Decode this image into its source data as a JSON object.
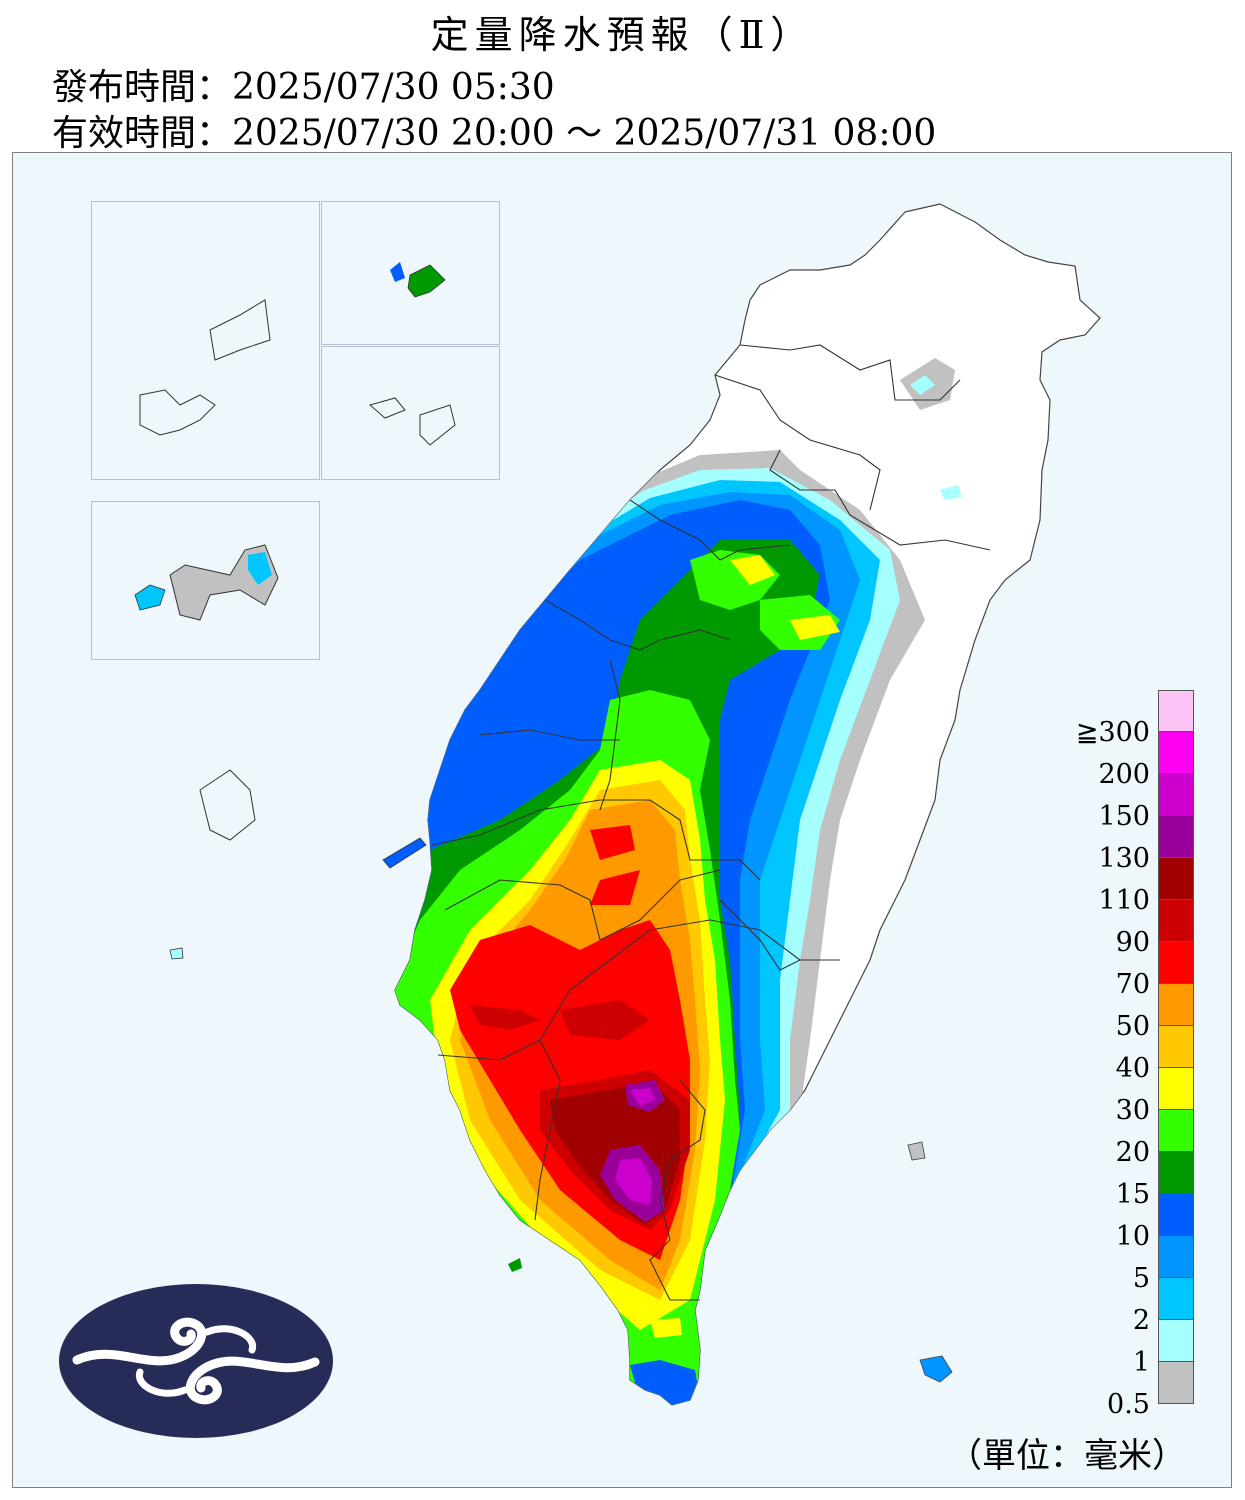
{
  "header": {
    "title": "定量降水預報（Ⅱ）",
    "issue_time": "發布時間：2025/07/30 05:30",
    "valid_time": "有效時間：2025/07/30 20:00 ～ 2025/07/31 08:00"
  },
  "legend": {
    "ticks": [
      "≧300",
      "200",
      "150",
      "130",
      "110",
      "90",
      "70",
      "50",
      "40",
      "30",
      "20",
      "15",
      "10",
      "5",
      "2",
      "1",
      "0.5"
    ],
    "colors": [
      "#fcc4f6",
      "#ff00f2",
      "#cc00cc",
      "#990099",
      "#a00000",
      "#cc0000",
      "#ff0000",
      "#ff9900",
      "#ffc800",
      "#ffff00",
      "#33ff00",
      "#009900",
      "#005eff",
      "#0095ff",
      "#00c6ff",
      "#a4fffe",
      "#c1c1c1"
    ],
    "unit": "（單位：毫米）"
  },
  "logo": {
    "name": "cwa-logo"
  }
}
